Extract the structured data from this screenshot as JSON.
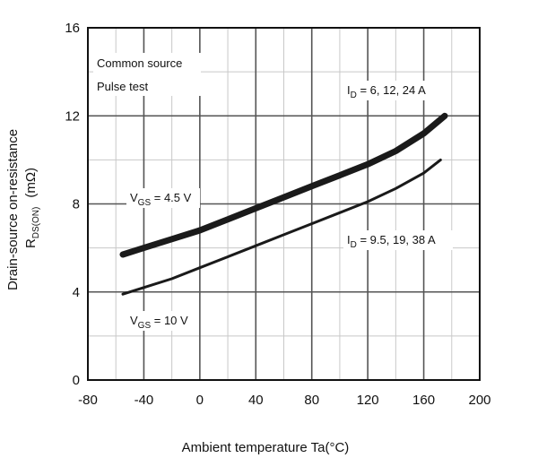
{
  "chart_data": {
    "type": "line",
    "xlabel": "Ambient temperature  Ta(°C)",
    "ylabel_line1": "Drain-source on-resistance",
    "ylabel_line2_main": "R",
    "ylabel_line2_sub": "DS(ON)",
    "ylabel_line2_unit": "(mΩ)",
    "xlim": [
      -80,
      200
    ],
    "ylim": [
      0,
      16
    ],
    "xticks": [
      "-80",
      "-40",
      "0",
      "40",
      "80",
      "120",
      "160",
      "200"
    ],
    "yticks": [
      "0",
      "4",
      "8",
      "12",
      "16"
    ],
    "grid": true,
    "annotations": {
      "common_source": "Common source",
      "pulse_test": "Pulse test",
      "id_top_main": "I",
      "id_top_sub": "D",
      "id_top_rest": " = 6,  12, 24 A",
      "id_bottom_main": "I",
      "id_bottom_sub": "D",
      "id_bottom_rest": " = 9.5,  19, 38 A",
      "vgs_top_main": "V",
      "vgs_top_sub": "GS",
      "vgs_top_rest": " = 4.5 V",
      "vgs_bottom_main": "V",
      "vgs_bottom_sub": "GS",
      "vgs_bottom_rest": " = 10 V"
    },
    "series": [
      {
        "x": [
          -55,
          -40,
          -20,
          0,
          20,
          40,
          60,
          80,
          100,
          120,
          140,
          160,
          175
        ],
        "y": [
          5.7,
          6.0,
          6.4,
          6.8,
          7.3,
          7.8,
          8.3,
          8.8,
          9.3,
          9.8,
          10.4,
          11.2,
          12.0
        ],
        "color": "#1a1a1a"
      },
      {
        "x": [
          -55,
          -40,
          -20,
          0,
          20,
          40,
          60,
          80,
          100,
          120,
          140,
          160,
          172
        ],
        "y": [
          3.9,
          4.2,
          4.6,
          5.1,
          5.6,
          6.1,
          6.6,
          7.1,
          7.6,
          8.1,
          8.7,
          9.4,
          10.0
        ],
        "color": "#1a1a1a"
      }
    ]
  }
}
